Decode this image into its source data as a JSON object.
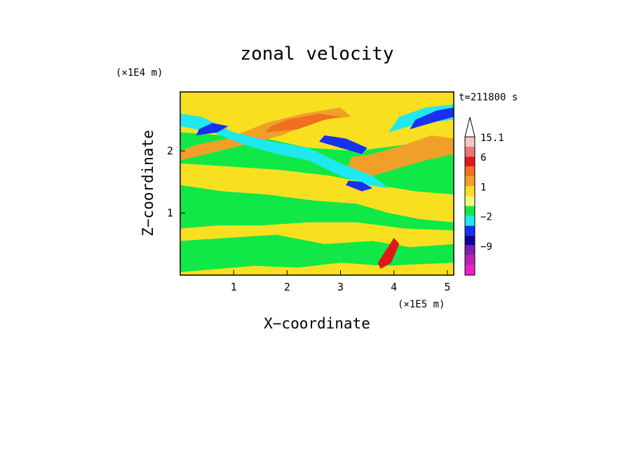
{
  "chart_data": {
    "type": "heatmap",
    "title": "zonal velocity",
    "xlabel": "X−coordinate",
    "ylabel": "Z−coordinate",
    "x_unit": "(×1E5 m)",
    "y_unit": "(×1E4 m)",
    "time_label": "t=211800 s",
    "xlim": [
      0,
      5.12
    ],
    "ylim": [
      0,
      2.95
    ],
    "x_ticks": [
      {
        "value": 1,
        "label": "1"
      },
      {
        "value": 2,
        "label": "2"
      },
      {
        "value": 3,
        "label": "3"
      },
      {
        "value": 4,
        "label": "4"
      },
      {
        "value": 5,
        "label": "5"
      }
    ],
    "y_ticks": [
      {
        "value": 1,
        "label": "1"
      },
      {
        "value": 2,
        "label": "2"
      }
    ],
    "colorbar": {
      "levels": [
        {
          "color": "#f0c8c8",
          "label": "15.1"
        },
        {
          "color": "#e87878",
          "label": ""
        },
        {
          "color": "#e01818",
          "label": "6"
        },
        {
          "color": "#f07020",
          "label": ""
        },
        {
          "color": "#f0a028",
          "label": ""
        },
        {
          "color": "#f8e020",
          "label": "1"
        },
        {
          "color": "#f8f878",
          "label": ""
        },
        {
          "color": "#10e848",
          "label": ""
        },
        {
          "color": "#20e8f0",
          "label": "−2"
        },
        {
          "color": "#1830f0",
          "label": ""
        },
        {
          "color": "#1000a0",
          "label": ""
        },
        {
          "color": "#8020b0",
          "label": "−9"
        },
        {
          "color": "#c020b8",
          "label": ""
        },
        {
          "color": "#f020c8",
          "label": ""
        }
      ]
    },
    "field": {
      "background_color": "#10e848",
      "bands": [
        {
          "color": "#f8e020",
          "points": [
            [
              0.0,
              0.05
            ],
            [
              0.7,
              0.1
            ],
            [
              1.4,
              0.15
            ],
            [
              2.2,
              0.12
            ],
            [
              3.0,
              0.2
            ],
            [
              3.8,
              0.15
            ],
            [
              5.12,
              0.2
            ],
            [
              5.12,
              0.0
            ],
            [
              0.0,
              0.0
            ]
          ]
        },
        {
          "color": "#f8e020",
          "points": [
            [
              0.0,
              1.45
            ],
            [
              0.8,
              1.35
            ],
            [
              1.6,
              1.3
            ],
            [
              2.5,
              1.2
            ],
            [
              3.3,
              1.15
            ],
            [
              3.9,
              1.0
            ],
            [
              4.5,
              0.9
            ],
            [
              5.12,
              0.85
            ],
            [
              5.12,
              1.3
            ],
            [
              4.4,
              1.35
            ],
            [
              3.7,
              1.45
            ],
            [
              2.8,
              1.6
            ],
            [
              1.8,
              1.7
            ],
            [
              0.9,
              1.75
            ],
            [
              0.0,
              1.8
            ]
          ]
        },
        {
          "color": "#f8e020",
          "points": [
            [
              0.0,
              0.55
            ],
            [
              0.9,
              0.6
            ],
            [
              1.8,
              0.65
            ],
            [
              2.7,
              0.5
            ],
            [
              3.6,
              0.55
            ],
            [
              4.3,
              0.45
            ],
            [
              5.12,
              0.5
            ],
            [
              5.12,
              0.72
            ],
            [
              4.2,
              0.75
            ],
            [
              3.3,
              0.85
            ],
            [
              2.4,
              0.85
            ],
            [
              1.5,
              0.8
            ],
            [
              0.7,
              0.8
            ],
            [
              0.0,
              0.75
            ]
          ]
        },
        {
          "color": "#f8e020",
          "points": [
            [
              0.0,
              2.3
            ],
            [
              0.8,
              2.25
            ],
            [
              1.6,
              2.2
            ],
            [
              2.4,
              2.05
            ],
            [
              3.3,
              2.0
            ],
            [
              4.2,
              2.1
            ],
            [
              5.12,
              2.05
            ],
            [
              5.12,
              2.95
            ],
            [
              0.0,
              2.95
            ]
          ]
        },
        {
          "color": "#f0a028",
          "points": [
            [
              0.0,
              1.85
            ],
            [
              0.5,
              1.95
            ],
            [
              1.2,
              2.1
            ],
            [
              1.9,
              2.25
            ],
            [
              2.6,
              2.5
            ],
            [
              3.2,
              2.55
            ],
            [
              3.0,
              2.7
            ],
            [
              2.3,
              2.6
            ],
            [
              1.6,
              2.45
            ],
            [
              0.9,
              2.2
            ],
            [
              0.3,
              2.1
            ],
            [
              0.0,
              2.0
            ]
          ]
        },
        {
          "color": "#f0a028",
          "points": [
            [
              3.1,
              1.65
            ],
            [
              3.6,
              1.6
            ],
            [
              4.0,
              1.7
            ],
            [
              4.6,
              1.85
            ],
            [
              5.12,
              1.95
            ],
            [
              5.12,
              2.2
            ],
            [
              4.7,
              2.25
            ],
            [
              4.2,
              2.1
            ],
            [
              3.6,
              1.95
            ],
            [
              3.2,
              1.9
            ]
          ]
        },
        {
          "color": "#f07020",
          "points": [
            [
              1.6,
              2.3
            ],
            [
              2.2,
              2.35
            ],
            [
              2.7,
              2.5
            ],
            [
              3.0,
              2.55
            ],
            [
              2.6,
              2.6
            ],
            [
              2.0,
              2.5
            ],
            [
              1.7,
              2.4
            ]
          ]
        },
        {
          "color": "#20e8f0",
          "points": [
            [
              0.0,
              2.4
            ],
            [
              0.6,
              2.3
            ],
            [
              1.2,
              2.1
            ],
            [
              1.8,
              1.95
            ],
            [
              2.4,
              1.85
            ],
            [
              3.0,
              1.6
            ],
            [
              3.5,
              1.45
            ],
            [
              3.9,
              1.4
            ],
            [
              3.6,
              1.6
            ],
            [
              3.0,
              1.8
            ],
            [
              2.4,
              2.05
            ],
            [
              1.7,
              2.15
            ],
            [
              1.0,
              2.3
            ],
            [
              0.4,
              2.55
            ],
            [
              0.0,
              2.6
            ]
          ]
        },
        {
          "color": "#20e8f0",
          "points": [
            [
              3.9,
              2.3
            ],
            [
              4.5,
              2.45
            ],
            [
              5.12,
              2.5
            ],
            [
              5.12,
              2.75
            ],
            [
              4.6,
              2.7
            ],
            [
              4.1,
              2.55
            ]
          ]
        },
        {
          "color": "#1830f0",
          "points": [
            [
              0.3,
              2.25
            ],
            [
              0.7,
              2.3
            ],
            [
              0.9,
              2.4
            ],
            [
              0.6,
              2.45
            ],
            [
              0.35,
              2.35
            ]
          ]
        },
        {
          "color": "#1830f0",
          "points": [
            [
              2.6,
              2.15
            ],
            [
              3.0,
              2.05
            ],
            [
              3.4,
              1.95
            ],
            [
              3.5,
              2.05
            ],
            [
              3.1,
              2.2
            ],
            [
              2.7,
              2.25
            ]
          ]
        },
        {
          "color": "#1830f0",
          "points": [
            [
              3.1,
              1.45
            ],
            [
              3.4,
              1.35
            ],
            [
              3.6,
              1.4
            ],
            [
              3.4,
              1.5
            ],
            [
              3.15,
              1.52
            ]
          ]
        },
        {
          "color": "#1830f0",
          "points": [
            [
              4.3,
              2.35
            ],
            [
              4.7,
              2.45
            ],
            [
              5.12,
              2.55
            ],
            [
              5.12,
              2.7
            ],
            [
              4.8,
              2.65
            ],
            [
              4.4,
              2.5
            ]
          ]
        },
        {
          "color": "#e01818",
          "points": [
            [
              3.75,
              0.1
            ],
            [
              3.95,
              0.2
            ],
            [
              4.1,
              0.5
            ],
            [
              4.0,
              0.6
            ],
            [
              3.85,
              0.4
            ],
            [
              3.7,
              0.2
            ]
          ]
        }
      ]
    }
  }
}
